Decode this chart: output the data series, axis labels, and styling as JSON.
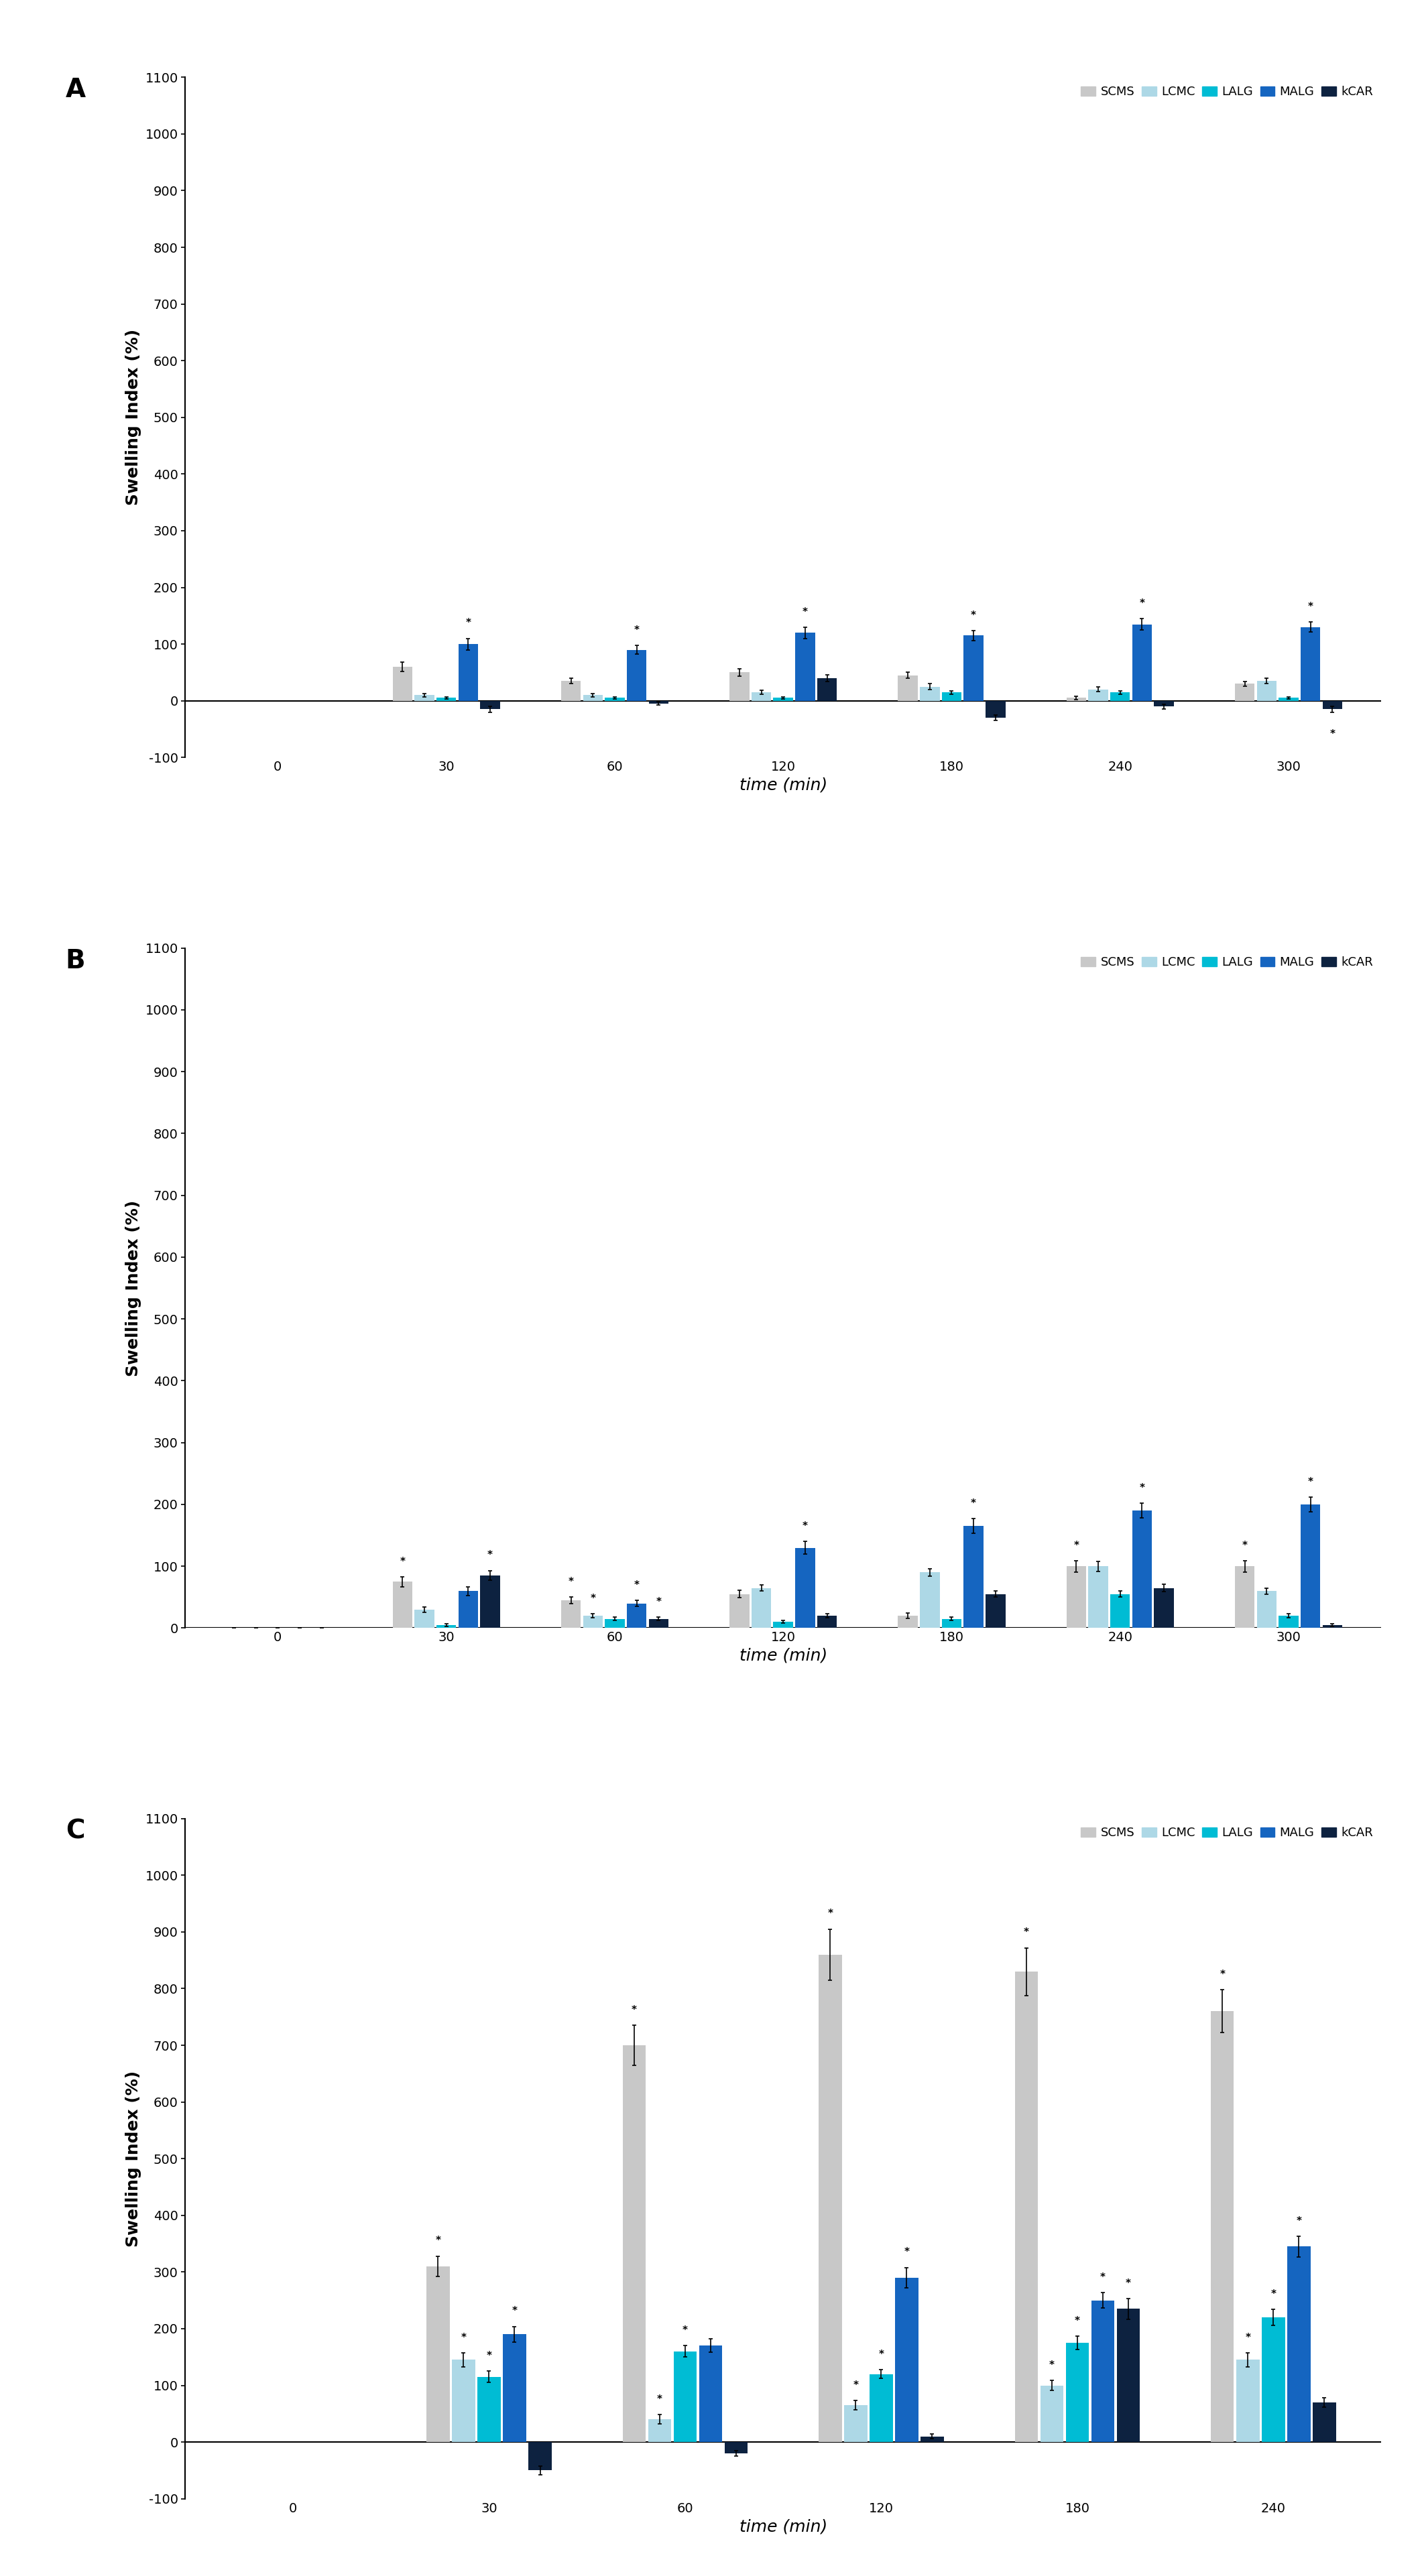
{
  "panels": [
    {
      "label": "A",
      "time_points": [
        0,
        30,
        60,
        120,
        180,
        240,
        300
      ],
      "ylim": [
        -100,
        1100
      ],
      "yticks": [
        -100,
        0,
        100,
        200,
        300,
        400,
        500,
        600,
        700,
        800,
        900,
        1000,
        1100
      ],
      "series": {
        "SCMS": [
          0,
          60,
          35,
          50,
          45,
          5,
          30
        ],
        "LCMC": [
          0,
          10,
          10,
          15,
          25,
          20,
          35
        ],
        "LALG": [
          0,
          5,
          5,
          5,
          15,
          15,
          5
        ],
        "MALG": [
          0,
          100,
          90,
          120,
          115,
          135,
          130
        ],
        "kCAR": [
          0,
          -15,
          -5,
          40,
          -30,
          -10,
          -15
        ]
      },
      "errors": {
        "SCMS": [
          0,
          8,
          5,
          6,
          5,
          3,
          4
        ],
        "LCMC": [
          0,
          3,
          3,
          4,
          5,
          4,
          5
        ],
        "LALG": [
          0,
          2,
          2,
          2,
          3,
          3,
          2
        ],
        "MALG": [
          0,
          10,
          8,
          10,
          9,
          10,
          9
        ],
        "kCAR": [
          0,
          5,
          3,
          6,
          5,
          4,
          5
        ]
      },
      "stars": {
        "SCMS": [
          false,
          false,
          false,
          false,
          false,
          false,
          false
        ],
        "LCMC": [
          false,
          false,
          false,
          false,
          false,
          false,
          false
        ],
        "LALG": [
          false,
          false,
          false,
          false,
          false,
          false,
          false
        ],
        "MALG": [
          false,
          true,
          true,
          true,
          true,
          true,
          true
        ],
        "kCAR": [
          false,
          false,
          false,
          false,
          false,
          false,
          true
        ]
      }
    },
    {
      "label": "B",
      "time_points": [
        0,
        30,
        60,
        120,
        180,
        240,
        300
      ],
      "ylim": [
        0,
        1100
      ],
      "yticks": [
        0,
        100,
        200,
        300,
        400,
        500,
        600,
        700,
        800,
        900,
        1000,
        1100
      ],
      "series": {
        "SCMS": [
          0,
          75,
          45,
          55,
          20,
          100,
          100
        ],
        "LCMC": [
          0,
          30,
          20,
          65,
          90,
          100,
          60
        ],
        "LALG": [
          0,
          5,
          15,
          10,
          15,
          55,
          20
        ],
        "MALG": [
          0,
          60,
          40,
          130,
          165,
          190,
          200
        ],
        "kCAR": [
          0,
          85,
          15,
          20,
          55,
          65,
          5
        ]
      },
      "errors": {
        "SCMS": [
          0,
          8,
          5,
          6,
          4,
          9,
          9
        ],
        "LCMC": [
          0,
          4,
          3,
          5,
          6,
          8,
          5
        ],
        "LALG": [
          0,
          2,
          3,
          2,
          3,
          5,
          3
        ],
        "MALG": [
          0,
          7,
          5,
          10,
          12,
          12,
          12
        ],
        "kCAR": [
          0,
          8,
          3,
          3,
          5,
          6,
          2
        ]
      },
      "stars": {
        "SCMS": [
          false,
          true,
          true,
          false,
          false,
          true,
          true
        ],
        "LCMC": [
          false,
          false,
          true,
          false,
          false,
          false,
          false
        ],
        "LALG": [
          false,
          false,
          false,
          false,
          false,
          false,
          false
        ],
        "MALG": [
          false,
          false,
          true,
          true,
          true,
          true,
          true
        ],
        "kCAR": [
          false,
          true,
          true,
          false,
          false,
          false,
          false
        ]
      }
    },
    {
      "label": "C",
      "time_points": [
        0,
        30,
        60,
        120,
        180,
        240
      ],
      "ylim": [
        -100,
        1100
      ],
      "yticks": [
        -100,
        0,
        100,
        200,
        300,
        400,
        500,
        600,
        700,
        800,
        900,
        1000,
        1100
      ],
      "series": {
        "SCMS": [
          0,
          310,
          700,
          860,
          830,
          760
        ],
        "LCMC": [
          0,
          145,
          40,
          65,
          100,
          145
        ],
        "LALG": [
          0,
          115,
          160,
          120,
          175,
          220
        ],
        "MALG": [
          0,
          190,
          170,
          290,
          250,
          345
        ],
        "kCAR": [
          0,
          -50,
          -20,
          10,
          235,
          70
        ]
      },
      "errors": {
        "SCMS": [
          0,
          18,
          35,
          45,
          42,
          38
        ],
        "LCMC": [
          0,
          12,
          8,
          8,
          9,
          12
        ],
        "LALG": [
          0,
          10,
          10,
          8,
          12,
          14
        ],
        "MALG": [
          0,
          14,
          12,
          18,
          14,
          18
        ],
        "kCAR": [
          0,
          8,
          5,
          4,
          18,
          8
        ]
      },
      "stars": {
        "SCMS": [
          false,
          true,
          true,
          true,
          true,
          true
        ],
        "LCMC": [
          false,
          true,
          true,
          true,
          true,
          true
        ],
        "LALG": [
          false,
          true,
          true,
          true,
          true,
          true
        ],
        "MALG": [
          false,
          true,
          false,
          true,
          true,
          true
        ],
        "kCAR": [
          false,
          false,
          false,
          false,
          true,
          false
        ]
      }
    }
  ],
  "colors": {
    "SCMS": "#c8c8c8",
    "LCMC": "#add8e6",
    "LALG": "#00bcd4",
    "MALG": "#1565c0",
    "kCAR": "#0d2240"
  },
  "series_order": [
    "SCMS",
    "LCMC",
    "LALG",
    "MALG",
    "kCAR"
  ],
  "ylabel": "Swelling Index (%)",
  "xlabel": "time (min)",
  "bar_width": 0.13,
  "background_color": "#ffffff",
  "label_fontsize": 18,
  "tick_fontsize": 14,
  "legend_fontsize": 13,
  "panel_letter_fontsize": 28,
  "star_fontsize": 11
}
